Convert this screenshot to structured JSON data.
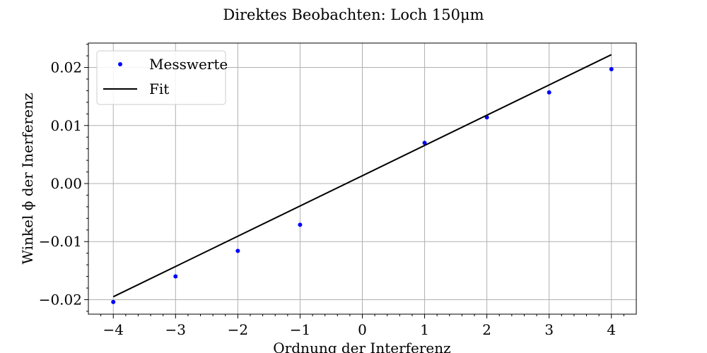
{
  "chart_data": {
    "type": "scatter",
    "title": "Direktes Beobachten: Loch 150μm",
    "xlabel": "Ordnung der Interferenz",
    "ylabel": "Winkel ϕ der Inerferenz",
    "xlim": [
      -4.4,
      4.4
    ],
    "ylim": [
      -0.0225,
      0.0242
    ],
    "xticks": [
      -4,
      -3,
      -2,
      -1,
      0,
      1,
      2,
      3,
      4
    ],
    "xtick_labels": [
      "−4",
      "−3",
      "−2",
      "−1",
      "0",
      "1",
      "2",
      "3",
      "4"
    ],
    "yticks": [
      -0.02,
      -0.01,
      0.0,
      0.01,
      0.02
    ],
    "ytick_labels": [
      "−0.02",
      "−0.01",
      "0.00",
      "0.01",
      "0.02"
    ],
    "grid": true,
    "legend_position": "top-left",
    "series": [
      {
        "name": "Messwerte",
        "kind": "points",
        "color": "#0000ff",
        "x": [
          -4,
          -3,
          -2,
          -1,
          1,
          2,
          3,
          4
        ],
        "y": [
          -0.0204,
          -0.016,
          -0.0116,
          -0.0071,
          0.007,
          0.0114,
          0.0157,
          0.0197
        ]
      },
      {
        "name": "Fit",
        "kind": "line",
        "color": "#000000",
        "x": [
          -4,
          4
        ],
        "y": [
          -0.0195,
          0.0222
        ]
      }
    ]
  }
}
